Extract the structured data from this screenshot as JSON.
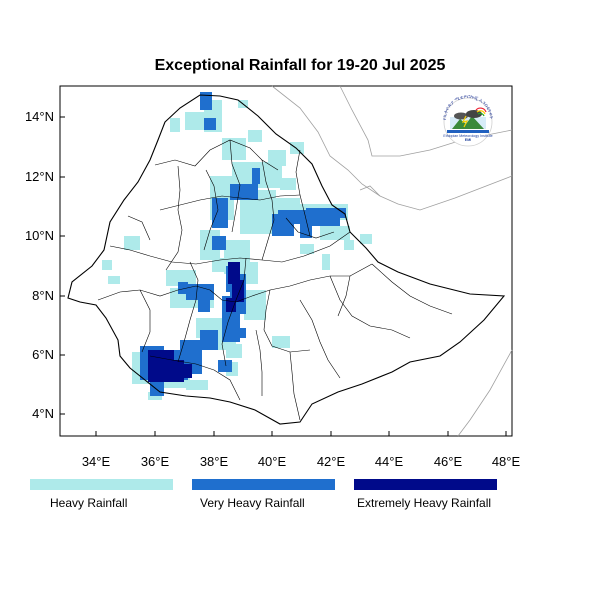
{
  "title": "Exceptional Rainfall for 19-20 Jul 2025",
  "axes": {
    "x_ticks": [
      "34°E",
      "36°E",
      "38°E",
      "40°E",
      "42°E",
      "44°E",
      "46°E",
      "48°E"
    ],
    "y_ticks": [
      "14°N",
      "12°N",
      "10°N",
      "8°N",
      "6°N",
      "4°N"
    ],
    "lon_range": [
      32.8,
      48.3
    ],
    "lat_range": [
      3.2,
      15.0
    ]
  },
  "legend": [
    {
      "label": "Heavy Rainfall",
      "color": "#aeeaea"
    },
    {
      "label": "Very Heavy Rainfall",
      "color": "#1f6fce"
    },
    {
      "label": "Extremely Heavy Rainfall",
      "color": "#000a8a"
    }
  ],
  "colors": {
    "heavy": "#aeeaea",
    "very_heavy": "#1f6fce",
    "extreme": "#000a8a",
    "boundary": "#000000",
    "coast": "#a0a0a0"
  },
  "logo": {
    "icon": "ethiopian-meteorology-institute-logo",
    "arc_text": "የኢትዮጵያ ሚቲዎሮሎጂ ኢንስቲትዩት",
    "name_text": "Ethiopian Meteorology Institute",
    "abbr_text": "EMI"
  }
}
